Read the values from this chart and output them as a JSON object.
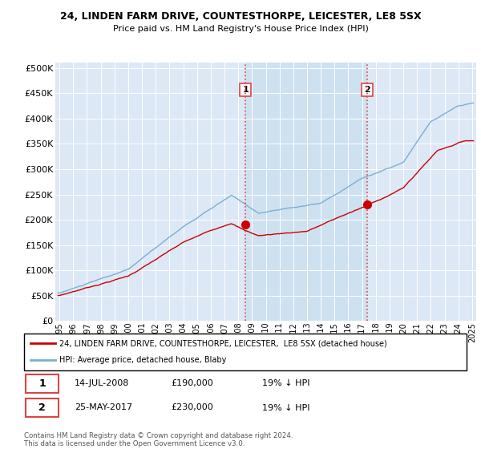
{
  "title1": "24, LINDEN FARM DRIVE, COUNTESTHORPE, LEICESTER, LE8 5SX",
  "title2": "Price paid vs. HM Land Registry's House Price Index (HPI)",
  "ylabel_ticks": [
    "£0",
    "£50K",
    "£100K",
    "£150K",
    "£200K",
    "£250K",
    "£300K",
    "£350K",
    "£400K",
    "£450K",
    "£500K"
  ],
  "ytick_vals": [
    0,
    50000,
    100000,
    150000,
    200000,
    250000,
    300000,
    350000,
    400000,
    450000,
    500000
  ],
  "xlim_start": 1994.7,
  "xlim_end": 2025.3,
  "ylim": [
    0,
    510000
  ],
  "background_color": "#dce8f5",
  "shade_color": "#c8dff0",
  "hpi_color": "#7aafd4",
  "price_color": "#cc0000",
  "marker1_date": 2008.54,
  "marker1_price": 190000,
  "marker2_date": 2017.4,
  "marker2_price": 230000,
  "vline_color": "#dd4444",
  "vline_style": "-.",
  "legend_line1": "24, LINDEN FARM DRIVE, COUNTESTHORPE, LEICESTER,  LE8 5SX (detached house)",
  "legend_line2": "HPI: Average price, detached house, Blaby",
  "note1_label": "1",
  "note1_date": "14-JUL-2008",
  "note1_price": "£190,000",
  "note1_hpi": "19% ↓ HPI",
  "note2_label": "2",
  "note2_date": "25-MAY-2017",
  "note2_price": "£230,000",
  "note2_hpi": "19% ↓ HPI",
  "footer": "Contains HM Land Registry data © Crown copyright and database right 2024.\nThis data is licensed under the Open Government Licence v3.0."
}
